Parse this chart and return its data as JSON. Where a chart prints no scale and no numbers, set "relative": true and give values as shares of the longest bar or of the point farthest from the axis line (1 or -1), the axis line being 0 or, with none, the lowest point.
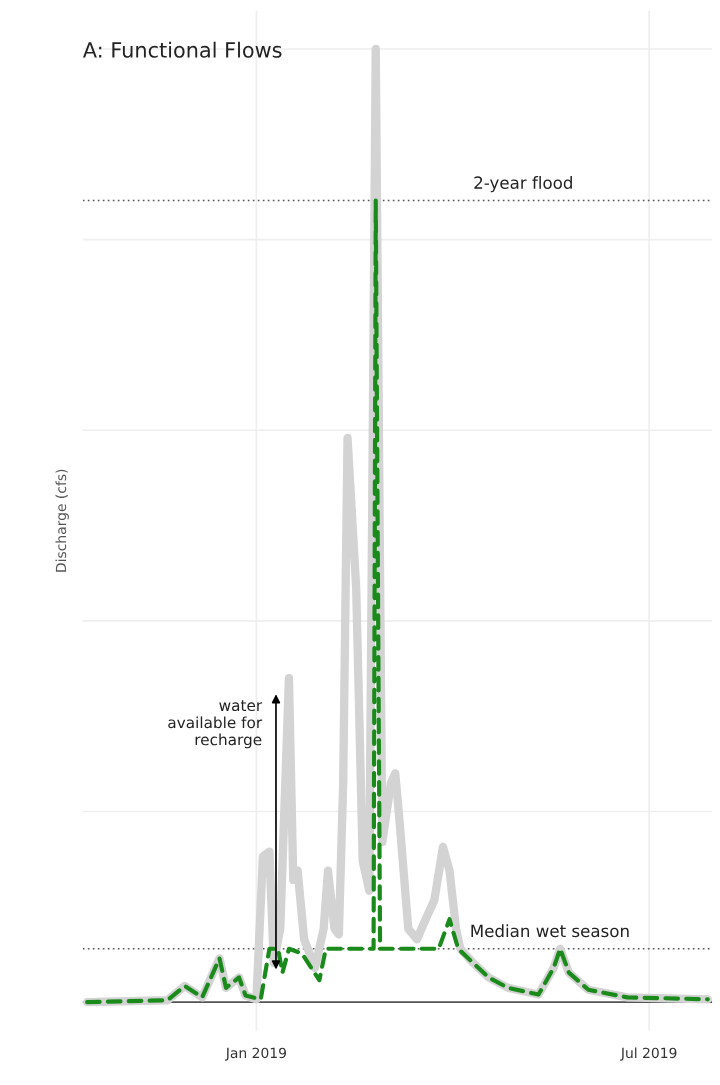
{
  "chart_data": {
    "type": "line",
    "title": "A: Functional Flows",
    "ylabel": "Discharge (cfs)",
    "relative": true,
    "xlim": [
      "2018-10-13",
      "2019-07-30"
    ],
    "xticks": [
      {
        "value": "2019-01-01",
        "label": "Jan 2019"
      },
      {
        "value": "2019-07-01",
        "label": "Jul 2019"
      }
    ],
    "grid": true,
    "series": [
      {
        "color": "#d3d3d3",
        "line_style": "solid",
        "x": [
          "2018-10-15",
          "2018-11-21",
          "2018-11-29",
          "2018-12-07",
          "2018-12-15",
          "2018-12-18",
          "2018-12-24",
          "2018-12-27",
          "2019-01-01",
          "2019-01-04",
          "2019-01-07",
          "2019-01-09",
          "2019-01-12",
          "2019-01-16",
          "2019-01-18",
          "2019-01-20",
          "2019-01-23",
          "2019-01-28",
          "2019-02-01",
          "2019-02-03",
          "2019-02-06",
          "2019-02-08",
          "2019-02-10",
          "2019-02-12",
          "2019-02-16",
          "2019-02-19",
          "2019-02-22",
          "2019-02-25",
          "2019-02-28",
          "2019-03-04",
          "2019-03-06",
          "2019-03-08",
          "2019-03-12",
          "2019-03-16",
          "2019-03-20",
          "2019-03-24",
          "2019-03-28",
          "2019-03-31",
          "2019-04-03",
          "2019-04-05",
          "2019-04-11",
          "2019-04-18",
          "2019-04-27",
          "2019-05-11",
          "2019-05-18",
          "2019-05-21",
          "2019-05-25",
          "2019-06-03",
          "2019-06-21",
          "2019-07-28"
        ],
        "values": [
          0,
          0.002,
          0.017,
          0.005,
          0.046,
          0.015,
          0.026,
          0.007,
          0.003,
          0.153,
          0.158,
          0.041,
          0.077,
          0.34,
          0.128,
          0.138,
          0.066,
          0.036,
          0.077,
          0.138,
          0.077,
          0.071,
          0.23,
          0.592,
          0.434,
          0.148,
          0.117,
          1,
          0.168,
          0.23,
          0.24,
          0.189,
          0.077,
          0.066,
          0.087,
          0.107,
          0.163,
          0.138,
          0.077,
          0.056,
          0.041,
          0.026,
          0.015,
          0.008,
          0.036,
          0.056,
          0.031,
          0.013,
          0.005,
          0.003
        ]
      },
      {
        "color": "#1a8a1a",
        "line_style": "dashed",
        "x": [
          "2018-10-15",
          "2018-11-21",
          "2018-11-29",
          "2018-12-07",
          "2018-12-15",
          "2018-12-18",
          "2018-12-24",
          "2018-12-27",
          "2019-01-03",
          "2019-01-07",
          "2019-01-11",
          "2019-01-13",
          "2019-01-16",
          "2019-01-22",
          "2019-01-30",
          "2019-02-02",
          "2019-02-22",
          "2019-02-24",
          "2019-02-25",
          "2019-02-27",
          "2019-03-26",
          "2019-03-31",
          "2019-04-04",
          "2019-04-11",
          "2019-04-18",
          "2019-04-27",
          "2019-05-11",
          "2019-05-18",
          "2019-05-21",
          "2019-05-25",
          "2019-06-03",
          "2019-06-21",
          "2019-07-28"
        ],
        "values": [
          0,
          0.002,
          0.017,
          0.005,
          0.046,
          0.015,
          0.026,
          0.007,
          0.003,
          0.056,
          0.056,
          0.031,
          0.056,
          0.051,
          0.023,
          0.056,
          0.056,
          0.056,
          0.841,
          0.056,
          0.056,
          0.087,
          0.056,
          0.041,
          0.026,
          0.015,
          0.008,
          0.036,
          0.056,
          0.031,
          0.013,
          0.005,
          0.003
        ]
      }
    ],
    "ref_lines": [
      {
        "axis": "y",
        "value": 0.841,
        "label": "2-year flood",
        "color": "#555555",
        "line_style": "dotted"
      },
      {
        "axis": "y",
        "value": 0.056,
        "label": "Median wet season",
        "color": "#555555",
        "line_style": "dotted"
      }
    ],
    "annotations": [
      "water\navailable for\nrecharge"
    ]
  }
}
